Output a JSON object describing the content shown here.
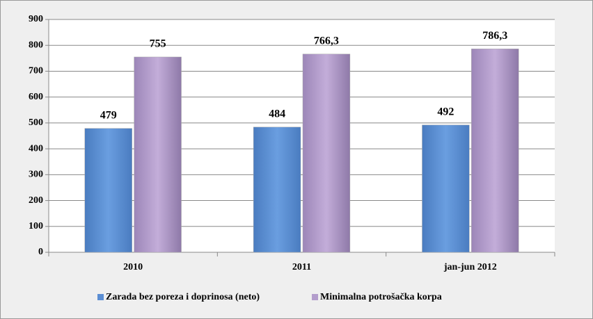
{
  "chart_data": {
    "type": "bar",
    "categories": [
      "2010",
      "2011",
      "jan-jun 2012"
    ],
    "series": [
      {
        "name": "Zarada bez poreza i doprinosa (neto)",
        "color": "#5b8ed3",
        "values": [
          479,
          484,
          492
        ]
      },
      {
        "name": "Minimalna potrošačka korpa",
        "color": "#b39dcc",
        "values": [
          755,
          766.3,
          786.3
        ],
        "value_labels": [
          "755",
          "766,3",
          "786,3"
        ]
      }
    ],
    "ylim": [
      0,
      900
    ],
    "yticks": [
      0,
      100,
      200,
      300,
      400,
      500,
      600,
      700,
      800,
      900
    ],
    "grid": true,
    "legend": "bottom"
  }
}
